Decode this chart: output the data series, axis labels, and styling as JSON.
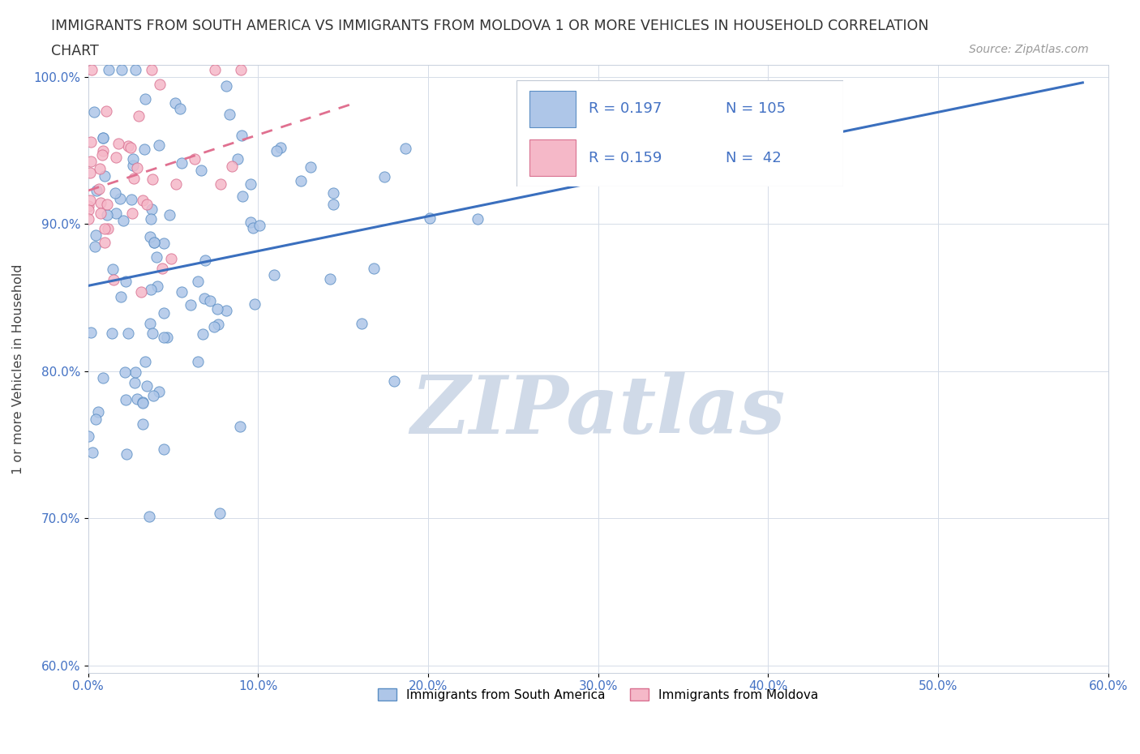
{
  "title_line1": "IMMIGRANTS FROM SOUTH AMERICA VS IMMIGRANTS FROM MOLDOVA 1 OR MORE VEHICLES IN HOUSEHOLD CORRELATION",
  "title_line2": "CHART",
  "source": "Source: ZipAtlas.com",
  "xlabel_blue": "Immigrants from South America",
  "xlabel_pink": "Immigrants from Moldova",
  "ylabel": "1 or more Vehicles in Household",
  "R_blue": 0.197,
  "N_blue": 105,
  "R_pink": 0.159,
  "N_pink": 42,
  "xlim": [
    0.0,
    0.6
  ],
  "ylim": [
    0.595,
    1.008
  ],
  "yticks": [
    0.6,
    0.7,
    0.8,
    0.9,
    1.0
  ],
  "xticks": [
    0.0,
    0.1,
    0.2,
    0.3,
    0.4,
    0.5,
    0.6
  ],
  "color_blue": "#aec6e8",
  "color_blue_edge": "#5b8ec4",
  "color_blue_line": "#3a6fbe",
  "color_pink": "#f5b8c8",
  "color_pink_edge": "#d97090",
  "color_pink_line": "#e07090",
  "watermark": "ZIPatlas",
  "watermark_color": "#d0dae8",
  "legend_R_blue": "R = 0.197",
  "legend_N_blue": "N = 105",
  "legend_R_pink": "R = 0.159",
  "legend_N_pink": "N =  42"
}
